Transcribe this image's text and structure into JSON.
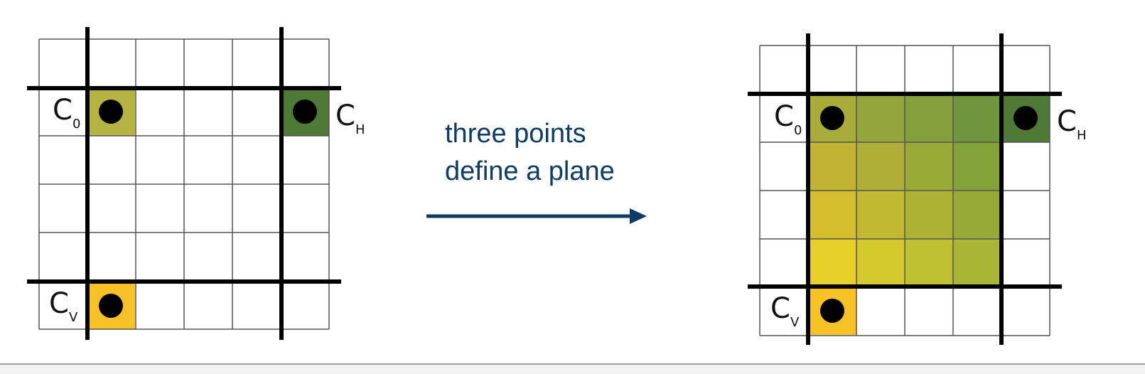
{
  "caption": {
    "line1": "three points",
    "line2": "define a plane"
  },
  "left_grid": {
    "labels": {
      "c0": {
        "main": "C",
        "sub": "0"
      },
      "ch": {
        "main": "C",
        "sub": "H"
      },
      "cv": {
        "main": "C",
        "sub": "V"
      }
    }
  },
  "right_grid": {
    "labels": {
      "c0": {
        "main": "C",
        "sub": "0"
      },
      "ch": {
        "main": "C",
        "sub": "H"
      },
      "cv": {
        "main": "C",
        "sub": "V"
      }
    },
    "plane_colors": [
      [
        "#a8ac39",
        "#95a53d",
        "#83a03c",
        "#6e963d"
      ],
      [
        "#c3b333",
        "#aeaf36",
        "#9aaa37",
        "#84a23a"
      ],
      [
        "#d4be2f",
        "#c1b931",
        "#adb235",
        "#97aa37"
      ],
      [
        "#e6d028",
        "#d3c82c",
        "#c0c130",
        "#a9b634"
      ]
    ]
  },
  "colors": {
    "c0": "#b6b440",
    "ch": "#4e7a35",
    "cv": "#f7c226",
    "arrow": "#0f3b64",
    "grid_line": "#555555",
    "thick_line": "#000000"
  }
}
